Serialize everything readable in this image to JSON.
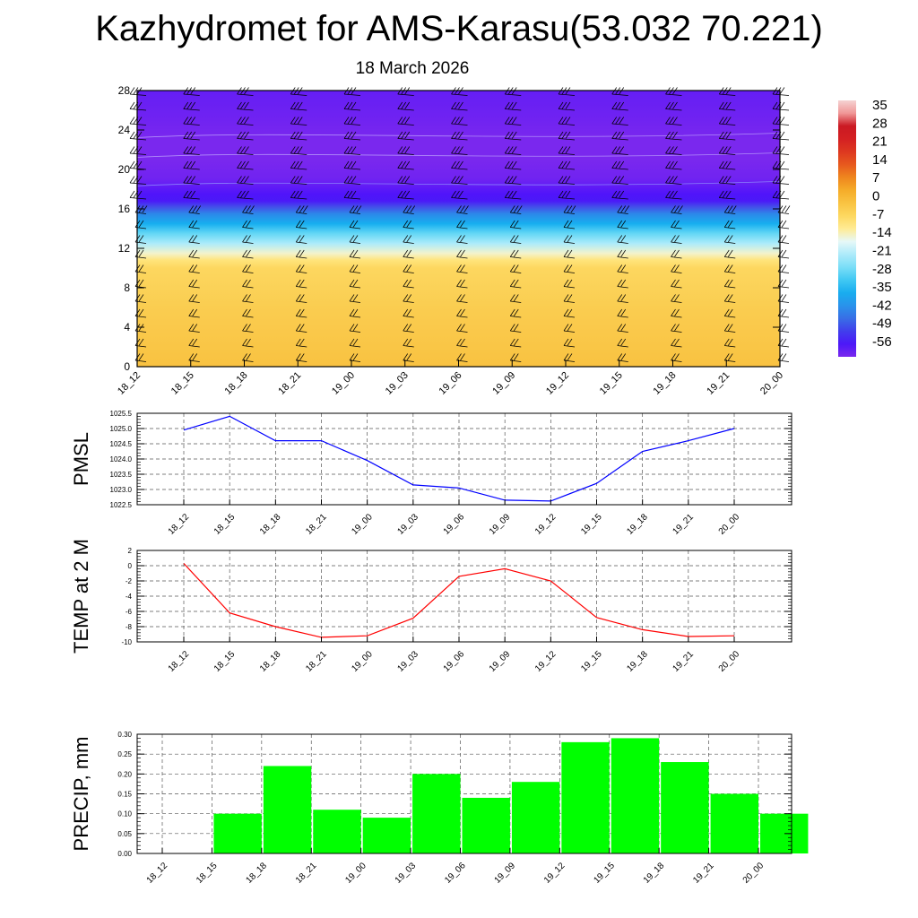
{
  "title": "Kazhydromet for AMS-Karasu(53.032 70.221)",
  "subtitle": "18 March 2026",
  "chart_data": [
    {
      "type": "heatmap",
      "name": "temperature-height cross section with wind barbs",
      "xlabel": "",
      "ylabel": "",
      "x_ticks": [
        "18_12",
        "18_15",
        "18_18",
        "18_21",
        "19_00",
        "19_03",
        "19_06",
        "19_09",
        "19_12",
        "19_15",
        "19_18",
        "19_21",
        "20_00"
      ],
      "y_ticks": [
        0,
        4,
        8,
        12,
        16,
        20,
        24,
        28
      ],
      "ylim": [
        0,
        28
      ],
      "colorbar": {
        "labels": [
          "35",
          "28",
          "21",
          "14",
          "7",
          "0",
          "-7",
          "-14",
          "-21",
          "-28",
          "-35",
          "-42",
          "-49",
          "-56"
        ],
        "range": [
          -60,
          38
        ]
      },
      "profile": {
        "heights": [
          0,
          2,
          4,
          6,
          8,
          10,
          10.8,
          11.5,
          12.5,
          13.5,
          14.5,
          15.5,
          16.2,
          16.8,
          17.5,
          19,
          21,
          23,
          25,
          28
        ],
        "temps": [
          -1,
          -2,
          -3,
          -4,
          -5,
          -6,
          -9,
          -14,
          -21,
          -28,
          -35,
          -42,
          -49,
          -55,
          -56,
          -59,
          -60,
          -60,
          -59,
          -58
        ]
      }
    },
    {
      "type": "line",
      "name": "PMSL",
      "ylabel": "PMSL",
      "categories": [
        "18_12",
        "18_15",
        "18_18",
        "18_21",
        "19_00",
        "19_03",
        "19_06",
        "19_09",
        "19_12",
        "19_15",
        "19_18",
        "19_21",
        "20_00"
      ],
      "values": [
        1024.95,
        1025.4,
        1024.6,
        1024.6,
        1023.95,
        1023.15,
        1023.05,
        1022.65,
        1022.62,
        1023.2,
        1024.25,
        1024.6,
        1025.0
      ],
      "ylim": [
        1022.5,
        1025.5
      ],
      "y_ticks": [
        "1022.5",
        "1023.0",
        "1023.5",
        "1024.0",
        "1024.5",
        "1025.0",
        "1025.5"
      ],
      "color": "#0000ff"
    },
    {
      "type": "line",
      "name": "TEMP at 2 M",
      "ylabel": "TEMP at 2 M",
      "categories": [
        "18_12",
        "18_15",
        "18_18",
        "18_21",
        "19_00",
        "19_03",
        "19_06",
        "19_09",
        "19_12",
        "19_15",
        "19_18",
        "19_21",
        "20_00"
      ],
      "values": [
        0.3,
        -6.2,
        -8.0,
        -9.4,
        -9.2,
        -6.9,
        -1.4,
        -0.4,
        -2.0,
        -6.8,
        -8.4,
        -9.3,
        -9.2
      ],
      "ylim": [
        -10,
        2
      ],
      "y_ticks": [
        "-10",
        "-8",
        "-6",
        "-4",
        "-2",
        "0",
        "2"
      ],
      "color": "#ff0000"
    },
    {
      "type": "bar",
      "name": "PRECIP, mm",
      "ylabel": "PRECIP, mm",
      "categories": [
        "18_12",
        "18_15",
        "18_18",
        "18_21",
        "19_00",
        "19_03",
        "19_06",
        "19_09",
        "19_12",
        "19_15",
        "19_18",
        "19_21",
        "20_00"
      ],
      "values": [
        0,
        0.1,
        0.22,
        0.11,
        0.09,
        0.2,
        0.14,
        0.18,
        0.28,
        0.29,
        0.23,
        0.15,
        0.1
      ],
      "ylim": [
        0,
        0.3
      ],
      "y_ticks": [
        "0.00",
        "0.05",
        "0.10",
        "0.15",
        "0.20",
        "0.25",
        "0.30"
      ],
      "color": "#00ff00"
    }
  ]
}
